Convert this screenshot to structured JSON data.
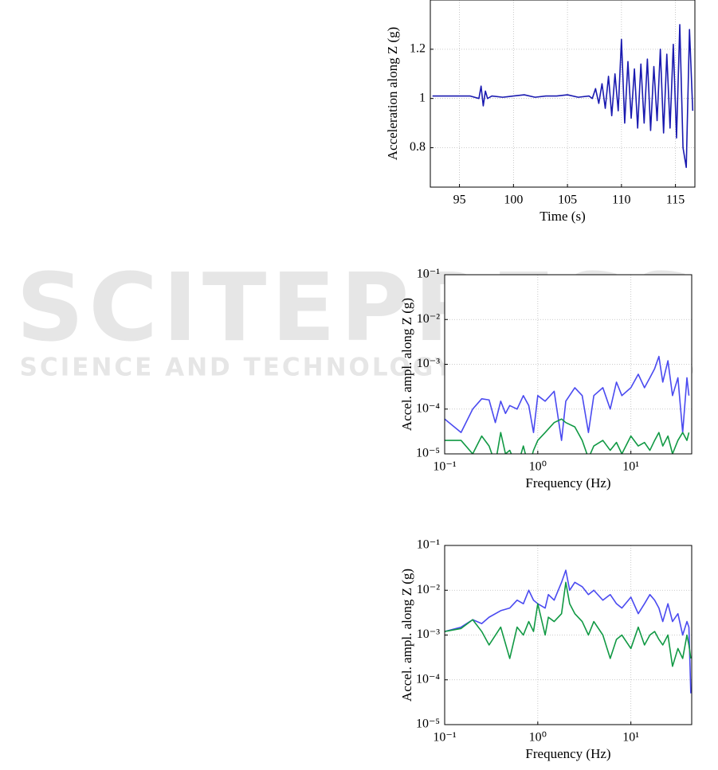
{
  "watermark": {
    "name": "SCITEPRESS",
    "tagline": "SCIENCE AND TECHNOLOGY PUBLICATIONS"
  },
  "chart_data": [
    {
      "type": "line",
      "x_label": "Time (s)",
      "y_label": "Acceleration along Z (g)",
      "xlim": [
        92.3,
        116.8
      ],
      "ylim": [
        0.64,
        1.4
      ],
      "xticks": [
        95,
        100,
        105,
        110,
        115
      ],
      "yticks": [
        0.8,
        1,
        1.2
      ],
      "grid": true,
      "x": [
        92.5,
        94,
        96,
        96.8,
        97,
        97.2,
        97.4,
        97.6,
        98,
        99,
        100,
        101,
        102,
        103,
        104,
        105,
        106,
        107,
        107.3,
        107.6,
        107.9,
        108.2,
        108.5,
        108.8,
        109.1,
        109.4,
        109.7,
        110,
        110.3,
        110.6,
        110.9,
        111.2,
        111.5,
        111.8,
        112.1,
        112.4,
        112.7,
        113,
        113.3,
        113.6,
        113.9,
        114.2,
        114.5,
        114.8,
        115.1,
        115.4,
        115.7,
        116,
        116.3,
        116.6
      ],
      "series": [
        {
          "color": "#1a1ab0",
          "values": [
            1.01,
            1.01,
            1.01,
            1.0,
            1.05,
            0.97,
            1.03,
            1.0,
            1.01,
            1.005,
            1.01,
            1.015,
            1.005,
            1.01,
            1.01,
            1.015,
            1.005,
            1.01,
            1.0,
            1.04,
            0.98,
            1.06,
            0.96,
            1.09,
            0.93,
            1.1,
            0.95,
            1.24,
            0.9,
            1.15,
            0.92,
            1.12,
            0.88,
            1.14,
            0.9,
            1.16,
            0.87,
            1.13,
            0.91,
            1.2,
            0.86,
            1.18,
            0.88,
            1.22,
            0.84,
            1.3,
            0.8,
            0.72,
            1.28,
            0.95
          ]
        }
      ]
    },
    {
      "type": "line",
      "x_label": "Frequency (Hz)",
      "y_label": "Accel. ampl. along Z (g)",
      "xscale": "log",
      "yscale": "log",
      "grid": true,
      "xlim": [
        0.1,
        45
      ],
      "ylim": [
        1e-05,
        0.1
      ],
      "xticks": [
        {
          "value": 0.1,
          "label": "10⁻¹"
        },
        {
          "value": 1,
          "label": "10⁰"
        },
        {
          "value": 10,
          "label": "10¹"
        }
      ],
      "yticks": [
        {
          "value": 1e-05,
          "label": "10⁻⁵"
        },
        {
          "value": 0.0001,
          "label": "10⁻⁴"
        },
        {
          "value": 0.001,
          "label": "10⁻³"
        },
        {
          "value": 0.01,
          "label": "10⁻²"
        },
        {
          "value": 0.1,
          "label": "10⁻¹"
        }
      ],
      "x": [
        0.1,
        0.15,
        0.2,
        0.25,
        0.3,
        0.35,
        0.4,
        0.45,
        0.5,
        0.6,
        0.7,
        0.8,
        0.9,
        1,
        1.2,
        1.5,
        1.8,
        2,
        2.5,
        3,
        3.5,
        4,
        5,
        6,
        7,
        8,
        10,
        12,
        14,
        16,
        18,
        20,
        22,
        25,
        28,
        32,
        36,
        40,
        42
      ],
      "series": [
        {
          "color": "#4a4af0",
          "values": [
            6e-05,
            3e-05,
            0.0001,
            0.00017,
            0.00016,
            5e-05,
            0.00015,
            8e-05,
            0.00012,
            0.0001,
            0.0002,
            0.00012,
            3e-05,
            0.0002,
            0.00015,
            0.00025,
            2e-05,
            0.00015,
            0.0003,
            0.0002,
            3e-05,
            0.0002,
            0.0003,
            0.0001,
            0.0004,
            0.0002,
            0.0003,
            0.0006,
            0.0003,
            0.0005,
            0.0008,
            0.0015,
            0.0004,
            0.0012,
            0.0002,
            0.0005,
            3e-05,
            0.0005,
            0.0002
          ]
        },
        {
          "color": "#119944",
          "values": [
            2e-05,
            2e-05,
            1e-05,
            2.5e-05,
            1.5e-05,
            6e-06,
            3e-05,
            1e-05,
            1.2e-05,
            5e-06,
            1.5e-05,
            5e-06,
            1.2e-05,
            2e-05,
            3e-05,
            5e-05,
            6e-05,
            5e-05,
            4e-05,
            2e-05,
            8e-06,
            1.5e-05,
            2e-05,
            1.2e-05,
            1.8e-05,
            1e-05,
            2.5e-05,
            1.5e-05,
            1.8e-05,
            1.2e-05,
            2e-05,
            3e-05,
            1.5e-05,
            2.5e-05,
            1e-05,
            2e-05,
            3e-05,
            2e-05,
            3e-05
          ]
        }
      ]
    },
    {
      "type": "line",
      "x_label": "Frequency (Hz)",
      "y_label": "Accel. ampl. along Z (g)",
      "xscale": "log",
      "yscale": "log",
      "grid": true,
      "xlim": [
        0.1,
        45
      ],
      "ylim": [
        1e-05,
        0.1
      ],
      "xticks": [
        {
          "value": 0.1,
          "label": "10⁻¹"
        },
        {
          "value": 1,
          "label": "10⁰"
        },
        {
          "value": 10,
          "label": "10¹"
        }
      ],
      "yticks": [
        {
          "value": 1e-05,
          "label": "10⁻⁵"
        },
        {
          "value": 0.0001,
          "label": "10⁻⁴"
        },
        {
          "value": 0.001,
          "label": "10⁻³"
        },
        {
          "value": 0.01,
          "label": "10⁻²"
        },
        {
          "value": 0.1,
          "label": "10⁻¹"
        }
      ],
      "x": [
        0.1,
        0.15,
        0.2,
        0.25,
        0.3,
        0.4,
        0.5,
        0.6,
        0.7,
        0.8,
        0.9,
        1,
        1.2,
        1.3,
        1.5,
        1.8,
        2,
        2.2,
        2.5,
        3,
        3.5,
        4,
        5,
        6,
        7,
        8,
        10,
        12,
        14,
        16,
        18,
        20,
        22,
        25,
        28,
        32,
        36,
        40,
        42,
        44
      ],
      "series": [
        {
          "color": "#4a4af0",
          "values": [
            0.0012,
            0.0015,
            0.0022,
            0.0018,
            0.0025,
            0.0035,
            0.004,
            0.006,
            0.005,
            0.01,
            0.006,
            0.005,
            0.004,
            0.008,
            0.006,
            0.015,
            0.028,
            0.01,
            0.015,
            0.012,
            0.008,
            0.01,
            0.006,
            0.008,
            0.005,
            0.004,
            0.007,
            0.003,
            0.005,
            0.008,
            0.006,
            0.004,
            0.002,
            0.005,
            0.002,
            0.003,
            0.001,
            0.002,
            0.0015,
            5e-05
          ]
        },
        {
          "color": "#119944",
          "values": [
            0.0012,
            0.0014,
            0.0022,
            0.0012,
            0.0006,
            0.0015,
            0.0003,
            0.0015,
            0.001,
            0.002,
            0.0012,
            0.005,
            0.001,
            0.0025,
            0.002,
            0.003,
            0.015,
            0.005,
            0.003,
            0.002,
            0.001,
            0.002,
            0.001,
            0.0003,
            0.0008,
            0.001,
            0.0005,
            0.0015,
            0.0006,
            0.001,
            0.0012,
            0.0008,
            0.0006,
            0.001,
            0.0002,
            0.0005,
            0.0003,
            0.001,
            0.0006,
            0.0003
          ]
        }
      ]
    }
  ]
}
